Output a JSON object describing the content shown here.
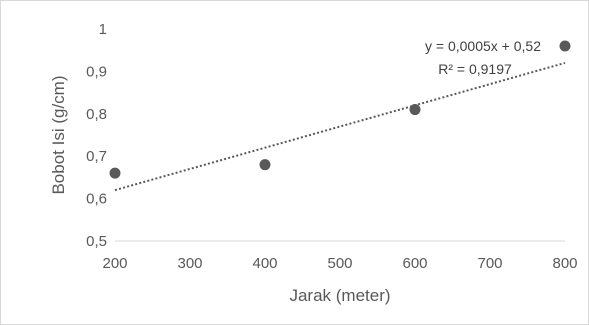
{
  "chart_data": {
    "type": "scatter",
    "xlabel": "Jarak (meter)",
    "ylabel": "Bobot Isi (g/cm)",
    "xlim": [
      200,
      800
    ],
    "ylim": [
      0.5,
      1.0
    ],
    "x_ticks": [
      200,
      300,
      400,
      500,
      600,
      700,
      800
    ],
    "y_ticks": [
      0.5,
      0.6,
      0.7,
      0.8,
      0.9,
      1.0
    ],
    "x_tick_labels": [
      "200",
      "300",
      "400",
      "500",
      "600",
      "700",
      "800"
    ],
    "y_tick_labels": [
      "0,5",
      "0,6",
      "0,7",
      "0,8",
      "0,9",
      "1"
    ],
    "grid": false,
    "points": [
      {
        "x": 200,
        "y": 0.66
      },
      {
        "x": 400,
        "y": 0.68
      },
      {
        "x": 600,
        "y": 0.81
      },
      {
        "x": 800,
        "y": 0.96
      }
    ],
    "trendline": {
      "type": "linear",
      "slope": 0.0005,
      "intercept": 0.52,
      "style": "dotted",
      "equation_label": "y = 0,0005x + 0,52",
      "r2_label": "R² = 0,9197"
    },
    "colors": {
      "marker": "#595959",
      "trendline": "#595959",
      "axis": "#d9d9d9",
      "text": "#595959"
    }
  }
}
